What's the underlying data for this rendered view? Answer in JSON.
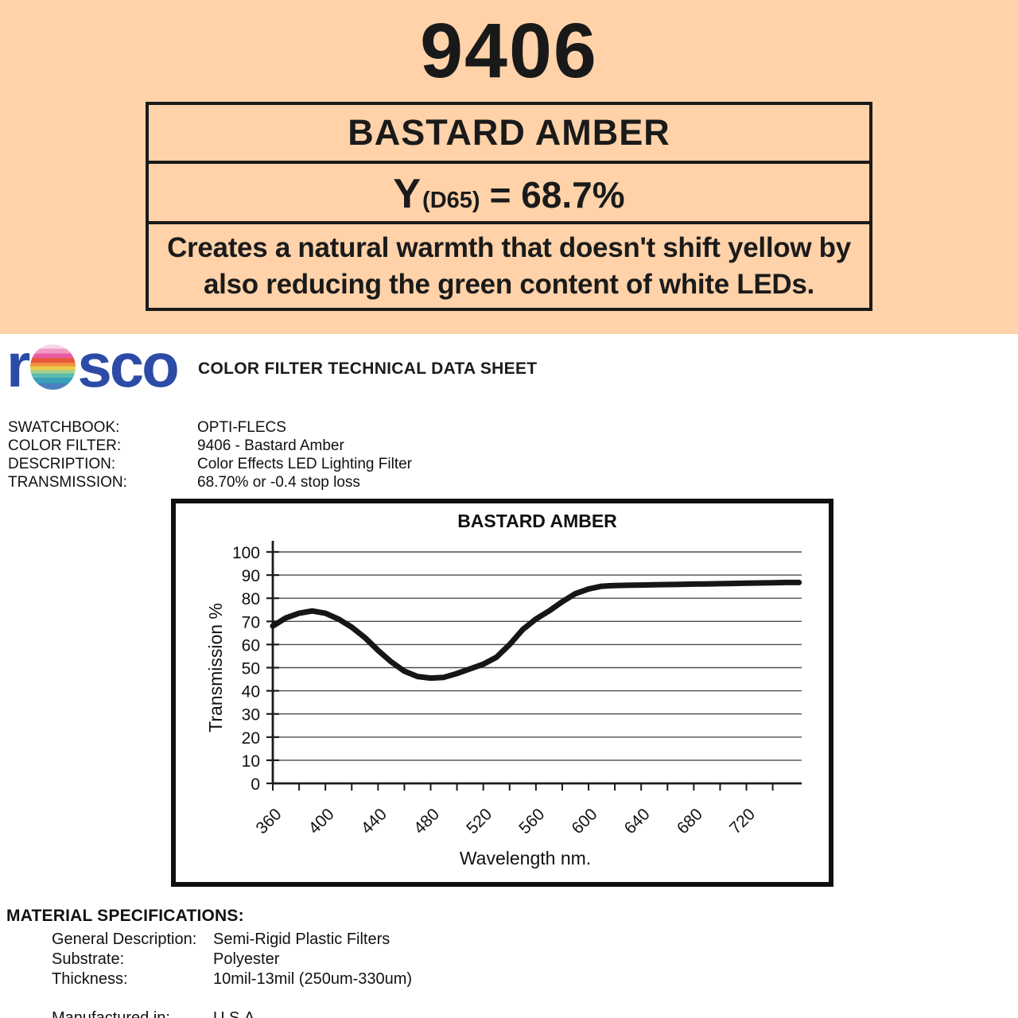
{
  "page": {
    "header_background": "#FFD2A9",
    "text_color": "#1a1a1a",
    "logo_color": "#2b4ba6"
  },
  "header": {
    "filter_number": "9406",
    "filter_name": "BASTARD AMBER",
    "y_symbol": "Y",
    "y_subscript": "(D65)",
    "y_value": "= 68.7%",
    "description_line1": "Creates a natural warmth that doesn't shift yellow by",
    "description_line2": "also reducing the green content of white LEDs."
  },
  "brand": {
    "logo_part1": "r",
    "logo_part2": "sco",
    "sheet_title": "COLOR FILTER TECHNICAL DATA SHEET"
  },
  "metadata": {
    "rows": [
      {
        "label": "SWATCHBOOK:",
        "value": "OPTI-FLECS"
      },
      {
        "label": "COLOR FILTER:",
        "value": "9406 - Bastard Amber"
      },
      {
        "label": "DESCRIPTION:",
        "value": "Color Effects LED Lighting Filter"
      },
      {
        "label": "TRANSMISSION:",
        "value": "68.70% or -0.4 stop loss"
      }
    ]
  },
  "chart_data": {
    "type": "line",
    "title": "BASTARD AMBER",
    "xlabel": "Wavelength nm.",
    "ylabel": "Transmission %",
    "xlim": [
      360,
      762
    ],
    "ylim": [
      0,
      100
    ],
    "x_major_ticks": [
      360,
      400,
      440,
      480,
      520,
      560,
      600,
      640,
      680,
      720
    ],
    "x_minor_step": 20,
    "x_minor_tick_end": 740,
    "y_ticks": [
      0,
      10,
      20,
      30,
      40,
      50,
      60,
      70,
      80,
      90,
      100
    ],
    "grid": "horizontal",
    "legend": "none",
    "series": [
      {
        "name": "9406 Bastard Amber transmission",
        "x": [
          360,
          370,
          380,
          390,
          400,
          410,
          420,
          430,
          440,
          450,
          460,
          470,
          480,
          490,
          500,
          510,
          520,
          530,
          540,
          550,
          560,
          570,
          580,
          590,
          600,
          610,
          620,
          630,
          640,
          650,
          660,
          670,
          680,
          690,
          700,
          710,
          720,
          730,
          740,
          750,
          760
        ],
        "y": [
          68,
          71.5,
          73.5,
          74.5,
          73.5,
          71,
          67.5,
          63,
          57.5,
          52.5,
          48.5,
          46.2,
          45.5,
          45.8,
          47.5,
          49.5,
          51.5,
          54.5,
          60,
          66.5,
          71,
          74.5,
          78.5,
          82,
          84,
          85.2,
          85.5,
          85.6,
          85.7,
          85.8,
          85.9,
          86,
          86.1,
          86.2,
          86.3,
          86.4,
          86.5,
          86.6,
          86.7,
          86.8,
          86.8
        ]
      }
    ]
  },
  "material_specs": {
    "heading": "MATERIAL SPECIFICATIONS:",
    "rows": [
      {
        "label": "General Description:",
        "value": "Semi-Rigid Plastic Filters"
      },
      {
        "label": "Substrate:",
        "value": "Polyester"
      },
      {
        "label": "Thickness:",
        "value": "10mil-13mil (250um-330um)"
      }
    ],
    "manufactured": {
      "label": "Manufactured in:",
      "value": "U.S.A."
    }
  }
}
